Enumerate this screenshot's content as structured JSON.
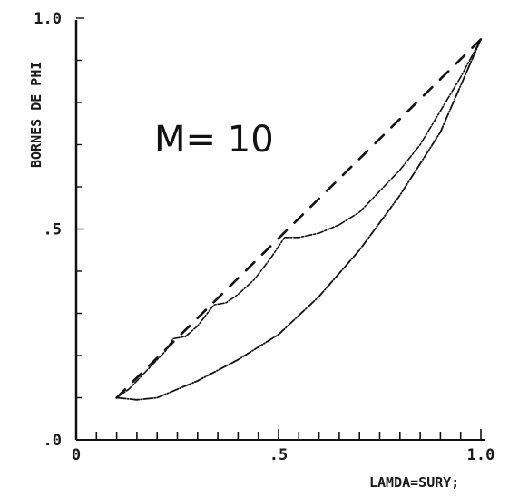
{
  "chart_data": {
    "type": "line",
    "xlabel": "LAMDA=SURY;",
    "ylabel": "BORNES DE PHI",
    "annotation": "M= 10",
    "xlim": [
      0,
      1.0
    ],
    "ylim": [
      0,
      1.0
    ],
    "x_ticks": [
      {
        "value": 0,
        "label": "0"
      },
      {
        "value": 0.5,
        "label": ".5"
      },
      {
        "value": 1.0,
        "label": "1.0"
      }
    ],
    "y_ticks": [
      {
        "value": 0,
        "label": ".0"
      },
      {
        "value": 0.5,
        "label": ".5"
      },
      {
        "value": 1.0,
        "label": "1.0"
      }
    ],
    "grid": false,
    "series": [
      {
        "style": "dashed",
        "x": [
          0.1,
          1.0
        ],
        "y": [
          0.1,
          0.95
        ]
      },
      {
        "style": "scalloped",
        "x": [
          0.1,
          0.13,
          0.16,
          0.18,
          0.2,
          0.22,
          0.24,
          0.27,
          0.3,
          0.34,
          0.37,
          0.4,
          0.44,
          0.48,
          0.515,
          0.55,
          0.6,
          0.65,
          0.7,
          0.75,
          0.8,
          0.85,
          0.9,
          0.95,
          1.0
        ],
        "y": [
          0.1,
          0.12,
          0.15,
          0.17,
          0.19,
          0.21,
          0.24,
          0.245,
          0.27,
          0.32,
          0.325,
          0.345,
          0.38,
          0.43,
          0.48,
          0.48,
          0.49,
          0.51,
          0.54,
          0.59,
          0.64,
          0.7,
          0.78,
          0.86,
          0.95
        ]
      },
      {
        "style": "solid",
        "x": [
          0.1,
          0.15,
          0.2,
          0.3,
          0.4,
          0.5,
          0.6,
          0.7,
          0.8,
          0.9,
          1.0
        ],
        "y": [
          0.1,
          0.095,
          0.1,
          0.14,
          0.19,
          0.25,
          0.34,
          0.45,
          0.58,
          0.73,
          0.95
        ]
      }
    ]
  }
}
